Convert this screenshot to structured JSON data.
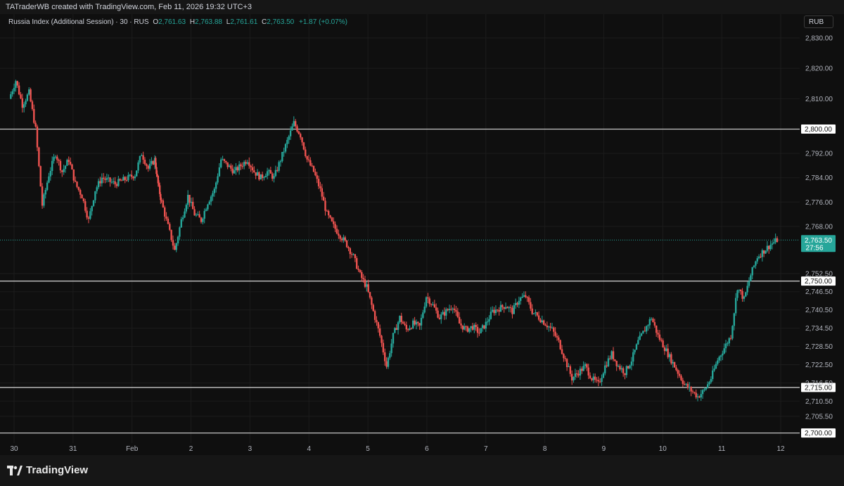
{
  "watermark": "TATraderWB created with TradingView.com, Feb 11, 2026 19:32 UTC+3",
  "legend": {
    "symbol": "Russia Index (Additional Session) · 30 · RUS",
    "o_label": "O",
    "o": "2,761.63",
    "h_label": "H",
    "h": "2,763.88",
    "l_label": "L",
    "l": "2,761.61",
    "c_label": "C",
    "c": "2,763.50",
    "change": "+1.87 (+0.07%)"
  },
  "currency": "RUB",
  "logo_text": "TradingView",
  "colors": {
    "up": "#26a69a",
    "down": "#ef5350",
    "hline": "#d9d9d9",
    "grid": "#1c1c1c",
    "text": "#b2b5be"
  },
  "chart_data": {
    "type": "candlestick",
    "ylim": [
      2699,
      2836
    ],
    "y_ticks": [
      "2,830.00",
      "2,820.00",
      "2,810.00",
      "2,792.00",
      "2,784.00",
      "2,776.00",
      "2,768.00",
      "2,752.50",
      "2,746.50",
      "2,740.50",
      "2,734.50",
      "2,728.50",
      "2,722.50",
      "2,716.50",
      "2,710.50",
      "2,705.50"
    ],
    "x_ticks": [
      "30",
      "31",
      "Feb",
      "2",
      "3",
      "4",
      "5",
      "6",
      "7",
      "8",
      "9",
      "10",
      "11",
      "12"
    ],
    "horizontal_lines": [
      {
        "value": 2800,
        "label": "2,800.00"
      },
      {
        "value": 2750,
        "label": "2,750.00"
      },
      {
        "value": 2715,
        "label": "2,715.00"
      },
      {
        "value": 2700,
        "label": "2,700.00"
      }
    ],
    "last_price": {
      "value": 2763.5,
      "label": "2,763.50",
      "countdown": "27:56"
    },
    "price_path": [
      [
        0,
        2810
      ],
      [
        1,
        2816
      ],
      [
        2,
        2808
      ],
      [
        3,
        2812
      ],
      [
        4,
        2800
      ],
      [
        5,
        2775
      ],
      [
        6,
        2785
      ],
      [
        7,
        2792
      ],
      [
        8,
        2786
      ],
      [
        9,
        2790
      ],
      [
        10,
        2782
      ],
      [
        11,
        2778
      ],
      [
        12,
        2770
      ],
      [
        13,
        2780
      ],
      [
        14,
        2784
      ],
      [
        15,
        2783
      ],
      [
        16,
        2782
      ],
      [
        17,
        2783
      ],
      [
        18,
        2784
      ],
      [
        19,
        2785
      ],
      [
        20,
        2792
      ],
      [
        21,
        2787
      ],
      [
        22,
        2790
      ],
      [
        22.5,
        2782
      ],
      [
        23,
        2776
      ],
      [
        24,
        2768
      ],
      [
        25,
        2760
      ],
      [
        26,
        2770
      ],
      [
        27,
        2778
      ],
      [
        28,
        2772
      ],
      [
        29,
        2770
      ],
      [
        30,
        2776
      ],
      [
        31,
        2780
      ],
      [
        32,
        2790
      ],
      [
        33,
        2788
      ],
      [
        34,
        2786
      ],
      [
        35,
        2788
      ],
      [
        36,
        2790
      ],
      [
        37,
        2786
      ],
      [
        38,
        2784
      ],
      [
        39,
        2786
      ],
      [
        40,
        2784
      ],
      [
        41,
        2790
      ],
      [
        42,
        2796
      ],
      [
        43,
        2802
      ],
      [
        44,
        2798
      ],
      [
        45,
        2790
      ],
      [
        46,
        2786
      ],
      [
        47,
        2780
      ],
      [
        48,
        2772
      ],
      [
        49,
        2768
      ],
      [
        50,
        2765
      ],
      [
        51,
        2762
      ],
      [
        52,
        2758
      ],
      [
        53,
        2752
      ],
      [
        54,
        2748
      ],
      [
        55,
        2740
      ],
      [
        56,
        2732
      ],
      [
        57,
        2722
      ],
      [
        58,
        2732
      ],
      [
        59,
        2738
      ],
      [
        60,
        2734
      ],
      [
        61,
        2736
      ],
      [
        62,
        2735
      ],
      [
        63,
        2745
      ],
      [
        64,
        2742
      ],
      [
        65,
        2738
      ],
      [
        66,
        2740
      ],
      [
        67,
        2742
      ],
      [
        68,
        2736
      ],
      [
        69,
        2734
      ],
      [
        70,
        2735
      ],
      [
        71,
        2733
      ],
      [
        72,
        2736
      ],
      [
        73,
        2740
      ],
      [
        74,
        2741
      ],
      [
        75,
        2742
      ],
      [
        76,
        2740
      ],
      [
        77,
        2744
      ],
      [
        78,
        2745
      ],
      [
        79,
        2740
      ],
      [
        80,
        2738
      ],
      [
        81,
        2736
      ],
      [
        82,
        2734
      ],
      [
        83,
        2730
      ],
      [
        84,
        2724
      ],
      [
        85,
        2718
      ],
      [
        86,
        2720
      ],
      [
        87,
        2722
      ],
      [
        88,
        2718
      ],
      [
        89,
        2716
      ],
      [
        90,
        2722
      ],
      [
        91,
        2726
      ],
      [
        92,
        2722
      ],
      [
        93,
        2720
      ],
      [
        94,
        2724
      ],
      [
        95,
        2730
      ],
      [
        96,
        2734
      ],
      [
        97,
        2738
      ],
      [
        98,
        2732
      ],
      [
        99,
        2728
      ],
      [
        100,
        2724
      ],
      [
        101,
        2720
      ],
      [
        102,
        2716
      ],
      [
        103,
        2714
      ],
      [
        104,
        2712
      ],
      [
        105,
        2714
      ],
      [
        106,
        2718
      ],
      [
        107,
        2724
      ],
      [
        108,
        2728
      ],
      [
        109,
        2732
      ],
      [
        110,
        2748
      ],
      [
        111,
        2744
      ],
      [
        112,
        2752
      ],
      [
        113,
        2758
      ],
      [
        114,
        2760
      ],
      [
        115,
        2762
      ],
      [
        116,
        2763.5
      ]
    ]
  }
}
